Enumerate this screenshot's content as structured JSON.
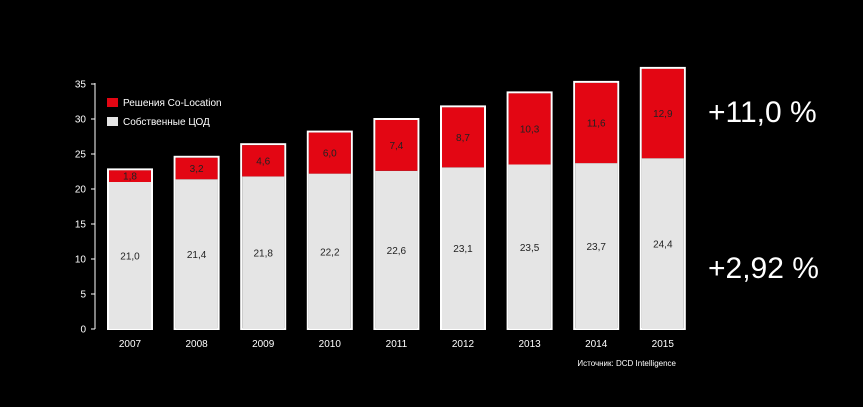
{
  "chart_data": {
    "type": "bar",
    "stacked": true,
    "categories": [
      "2007",
      "2008",
      "2009",
      "2010",
      "2011",
      "2012",
      "2013",
      "2014",
      "2015"
    ],
    "series": [
      {
        "name": "Собственные ЦОД",
        "color": "#e5e5e5",
        "values": [
          21.0,
          21.4,
          21.8,
          22.2,
          22.6,
          23.1,
          23.5,
          23.7,
          24.4
        ],
        "labels": [
          "21,0",
          "21,4",
          "21,8",
          "22,2",
          "22,6",
          "23,1",
          "23,5",
          "23,7",
          "24,4"
        ]
      },
      {
        "name": "Решения Co-Location",
        "color": "#e30613",
        "values": [
          1.8,
          3.2,
          4.6,
          6.0,
          7.4,
          8.7,
          10.3,
          11.6,
          12.9
        ],
        "labels": [
          "1,8",
          "3,2",
          "4,6",
          "6,0",
          "7,4",
          "8,7",
          "10,3",
          "11,6",
          "12,9"
        ]
      }
    ],
    "yticks": [
      0,
      5,
      10,
      15,
      20,
      25,
      30,
      35
    ],
    "ylim": [
      0,
      35
    ],
    "grid": false,
    "legend_position": "top-left",
    "source": "Источник: DCD Intelligence"
  },
  "growth": {
    "colocation": "+11,0 %",
    "own": "+2,92 %"
  }
}
